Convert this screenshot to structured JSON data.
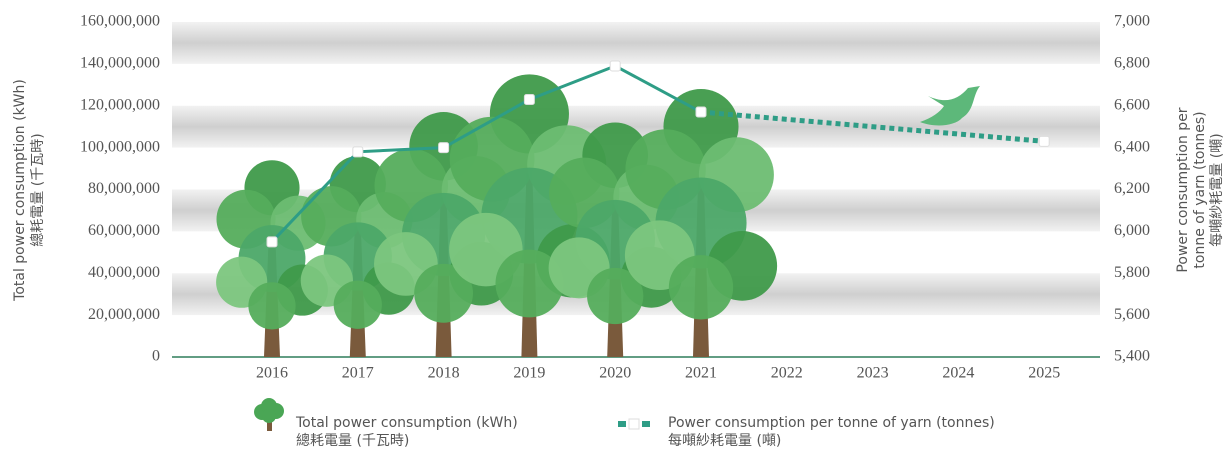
{
  "chart_data": {
    "type": "tree-line",
    "categories": [
      "2016",
      "2017",
      "2018",
      "2019",
      "2020",
      "2021",
      "2022",
      "2023",
      "2024",
      "2025"
    ],
    "y_label": [
      "Total power consumption (kWh)",
      "總耗電量 (千瓦時)"
    ],
    "y2_label": [
      "Power consumption per",
      "tonne of yarn (tonnes)",
      "每噸紗耗電量 (噸)"
    ],
    "ylim": [
      0,
      160000000
    ],
    "yticks": [
      0,
      {
        "value": 20000000,
        "label": "20,000,000"
      },
      {
        "value": 40000000,
        "label": "40,000,000"
      },
      {
        "value": 60000000,
        "label": "60,000,000"
      },
      {
        "value": 80000000,
        "label": "80,000,000"
      },
      {
        "value": 100000000,
        "label": "100,000,000"
      },
      {
        "value": 120000000,
        "label": "120,000,000"
      },
      {
        "value": 140000000,
        "label": "140,000,000"
      },
      {
        "value": 160000000,
        "label": "160,000,000"
      }
    ],
    "y2lim": [
      5400,
      7000
    ],
    "y2ticks": [
      {
        "value": 5400,
        "label": "5,400"
      },
      {
        "value": 5600,
        "label": "5,600"
      },
      {
        "value": 5800,
        "label": "5,800"
      },
      {
        "value": 6000,
        "label": "6,000"
      },
      {
        "value": 6200,
        "label": "6,200"
      },
      {
        "value": 6400,
        "label": "6,400"
      },
      {
        "value": 6600,
        "label": "6,600"
      },
      {
        "value": 6800,
        "label": "6,800"
      },
      {
        "value": 7000,
        "label": "7,000"
      }
    ],
    "series": [
      {
        "name": [
          "Total power consumption (kWh)",
          "總耗電量 (千瓦時)"
        ],
        "color": "#4aa655",
        "values": [
          94000000,
          96000000,
          117000000,
          135000000,
          112000000,
          128000000,
          null,
          null,
          null,
          null
        ]
      },
      {
        "name": [
          "Power consumption per tonne of yarn (tonnes)",
          "每噸紗耗電量 (噸)"
        ],
        "color": "#2e9d86",
        "axis": "y2",
        "values": [
          5950,
          6380,
          6400,
          6630,
          6790,
          6570,
          null,
          null,
          null,
          6430
        ]
      }
    ]
  }
}
